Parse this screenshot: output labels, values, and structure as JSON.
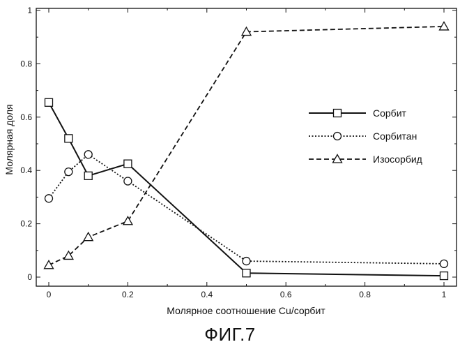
{
  "figure_caption": "ФИГ.7",
  "chart_data": {
    "type": "line",
    "xlabel": "Молярное соотношение Cu/сорбит",
    "ylabel": "Молярная доля",
    "xlim": [
      0,
      1
    ],
    "ylim": [
      0,
      1
    ],
    "x_ticks": [
      "0",
      "0.2",
      "0.4",
      "0.6",
      "0.8",
      "1"
    ],
    "y_ticks": [
      "0",
      "0.2",
      "0.4",
      "0.6",
      "0.8",
      "1"
    ],
    "grid": false,
    "legend_position": "right",
    "series": [
      {
        "name": "Сорбит",
        "marker": "square",
        "line_style": "solid",
        "x": [
          0,
          0.05,
          0.1,
          0.2,
          0.5,
          1
        ],
        "y": [
          0.655,
          0.52,
          0.38,
          0.425,
          0.015,
          0.005
        ]
      },
      {
        "name": "Сорбитан",
        "marker": "circle",
        "line_style": "dotted",
        "x": [
          0,
          0.05,
          0.1,
          0.2,
          0.5,
          1
        ],
        "y": [
          0.295,
          0.395,
          0.46,
          0.36,
          0.06,
          0.05
        ]
      },
      {
        "name": "Изосорбид",
        "marker": "triangle",
        "line_style": "dashed",
        "x": [
          0,
          0.05,
          0.1,
          0.2,
          0.5,
          1
        ],
        "y": [
          0.045,
          0.08,
          0.15,
          0.21,
          0.92,
          0.94
        ]
      }
    ]
  }
}
